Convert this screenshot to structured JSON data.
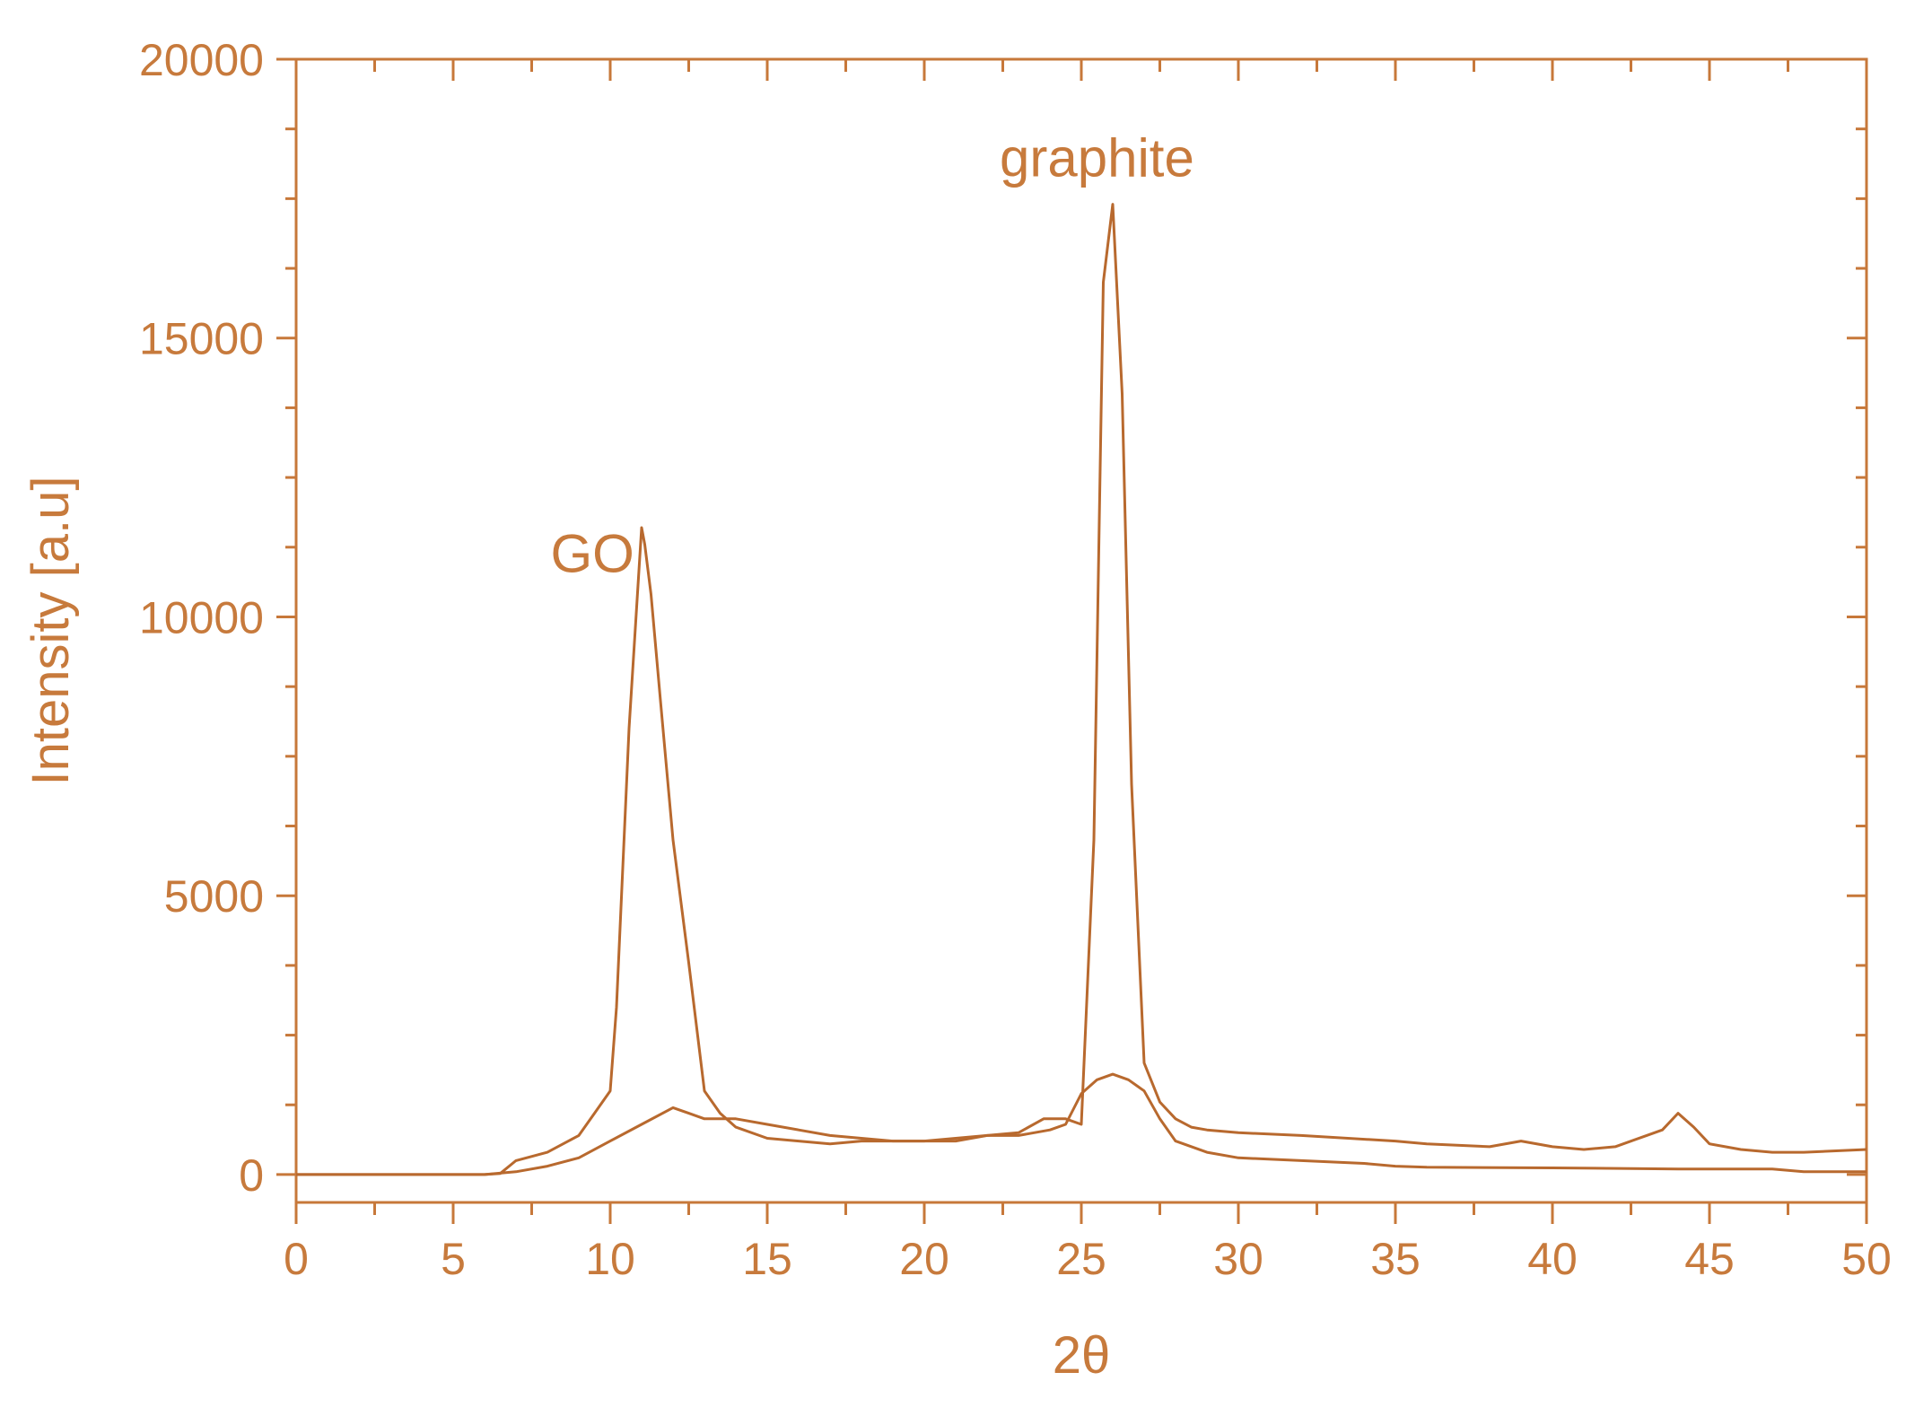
{
  "chart_data": {
    "type": "line",
    "title": "",
    "xlabel": "2θ",
    "ylabel": "Intensity [a.u]",
    "xlim": [
      0,
      50
    ],
    "ylim": [
      0,
      20000
    ],
    "x_ticks": [
      "0",
      "5",
      "10",
      "15",
      "20",
      "25",
      "30",
      "35",
      "40",
      "45",
      "50"
    ],
    "y_ticks": [
      "0",
      "5000",
      "10000",
      "15000",
      "20000"
    ],
    "grid": false,
    "legend": "none",
    "colors": {
      "axis": "#c7783a",
      "text": "#c77a3c",
      "line": "#b8692e"
    },
    "annotations": [
      {
        "text": "GO",
        "x": 8.1,
        "y": 10800
      },
      {
        "text": "graphite",
        "x": 22.4,
        "y": 17900
      }
    ],
    "series": [
      {
        "x": [
          0,
          6,
          6.5,
          7,
          8,
          9,
          9.5,
          10,
          10.2,
          10.6,
          11,
          11.1,
          11.3,
          11.6,
          12,
          12.5,
          13,
          13.5,
          14,
          15,
          16,
          17,
          18,
          19,
          20,
          21,
          22,
          23,
          24,
          24.5,
          25,
          25.5,
          26,
          26.5,
          27,
          27.5,
          28,
          29,
          30,
          32,
          34,
          35,
          36,
          40,
          44,
          47,
          48,
          50
        ],
        "y": [
          0,
          0,
          20,
          250,
          400,
          700,
          1100,
          1500,
          3000,
          8000,
          11600,
          11300,
          10400,
          8500,
          6000,
          3800,
          1500,
          1100,
          850,
          650,
          600,
          550,
          600,
          600,
          600,
          650,
          700,
          700,
          800,
          900,
          1450,
          1700,
          1800,
          1700,
          1500,
          1000,
          600,
          400,
          300,
          250,
          200,
          150,
          130,
          120,
          100,
          100,
          50,
          50
        ]
      },
      {
        "x": [
          0,
          6,
          7,
          8,
          9,
          10,
          11,
          12,
          12.5,
          13,
          14,
          15,
          16,
          17,
          18,
          19,
          20,
          21,
          22,
          23,
          23.8,
          24.5,
          25,
          25.4,
          25.7,
          26,
          26.3,
          26.6,
          27,
          27.5,
          28,
          28.5,
          29,
          30,
          32,
          35,
          36,
          38,
          39,
          40,
          41,
          42,
          43,
          43.5,
          44,
          44.5,
          45,
          46,
          47,
          48,
          50
        ],
        "y": [
          0,
          0,
          50,
          150,
          300,
          600,
          900,
          1200,
          1100,
          1000,
          1000,
          900,
          800,
          700,
          650,
          600,
          600,
          600,
          700,
          750,
          1000,
          1000,
          900,
          6000,
          16000,
          17400,
          14000,
          7000,
          2000,
          1300,
          1000,
          850,
          800,
          750,
          700,
          600,
          550,
          500,
          600,
          500,
          450,
          500,
          700,
          800,
          1100,
          850,
          550,
          450,
          400,
          400,
          450
        ]
      }
    ]
  }
}
